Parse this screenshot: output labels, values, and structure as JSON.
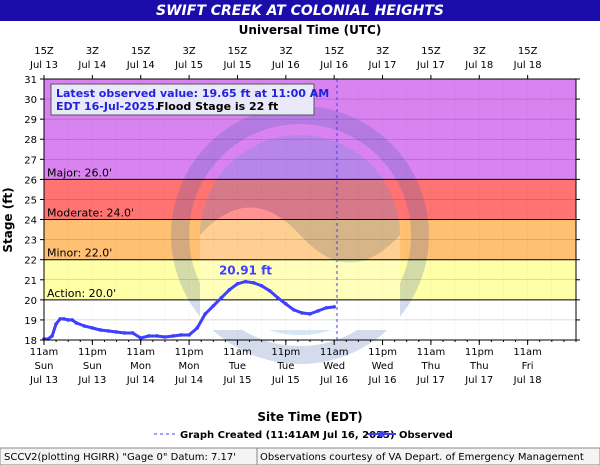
{
  "header": {
    "title": "SWIFT CREEK AT COLONIAL HEIGHTS",
    "top_axis_title": "Universal Time (UTC)"
  },
  "info_box": {
    "line1": "Latest observed value: 19.65 ft at 11:00 AM",
    "line2_a": "EDT 16-Jul-2025.",
    "line2_b": "Flood Stage is 22 ft"
  },
  "peak_label": "20.91 ft",
  "flood_categories": [
    {
      "name": "major",
      "label": "Major: 26.0'",
      "from": 26,
      "to": 31,
      "color": "#d883f0"
    },
    {
      "name": "moderate",
      "label": "Moderate: 24.0'",
      "from": 24,
      "to": 26,
      "color": "#ff7373"
    },
    {
      "name": "minor",
      "label": "Minor: 22.0'",
      "from": 22,
      "to": 24,
      "color": "#ffc073"
    },
    {
      "name": "action",
      "label": "Action: 20.0'",
      "from": 20,
      "to": 22,
      "color": "#ffffa8"
    }
  ],
  "footer": {
    "legend_created": "Graph Created (11:41AM Jul 16, 2025)",
    "legend_observed": "Observed",
    "site_info": "SCCV2(plotting HGIRR) \"Gage 0\" Datum: 7.17'",
    "credit": "Observations courtesy of VA Depart. of Emergency Management"
  },
  "colors": {
    "title_bar": "#1a0dab",
    "plot_frame": "#000000",
    "observed": "#3f3fff",
    "grid": "#999999"
  },
  "chart_data": {
    "type": "line",
    "ylabel": "Stage (ft)",
    "xlabel": "Site Time (EDT)",
    "ylim": [
      18,
      31
    ],
    "y_ticks": [
      18,
      19,
      20,
      21,
      22,
      23,
      24,
      25,
      26,
      27,
      28,
      29,
      30,
      31
    ],
    "x_range_hours": [
      0,
      132
    ],
    "bottom_ticks": [
      {
        "line1": "11am",
        "line2": "Sun",
        "line3": "Jul 13"
      },
      {
        "line1": "11pm",
        "line2": "Sun",
        "line3": "Jul 13"
      },
      {
        "line1": "11am",
        "line2": "Mon",
        "line3": "Jul 14"
      },
      {
        "line1": "11pm",
        "line2": "Mon",
        "line3": "Jul 14"
      },
      {
        "line1": "11am",
        "line2": "Tue",
        "line3": "Jul 15"
      },
      {
        "line1": "11pm",
        "line2": "Tue",
        "line3": "Jul 15"
      },
      {
        "line1": "11am",
        "line2": "Wed",
        "line3": "Jul 16"
      },
      {
        "line1": "11pm",
        "line2": "Wed",
        "line3": "Jul 16"
      },
      {
        "line1": "11am",
        "line2": "Thu",
        "line3": "Jul 17"
      },
      {
        "line1": "11pm",
        "line2": "Thu",
        "line3": "Jul 17"
      },
      {
        "line1": "11am",
        "line2": "Fri",
        "line3": "Jul 18"
      }
    ],
    "top_ticks": [
      {
        "line1": "15Z",
        "line2": "Jul 13"
      },
      {
        "line1": "3Z",
        "line2": "Jul 14"
      },
      {
        "line1": "15Z",
        "line2": "Jul 14"
      },
      {
        "line1": "3Z",
        "line2": "Jul 15"
      },
      {
        "line1": "15Z",
        "line2": "Jul 15"
      },
      {
        "line1": "3Z",
        "line2": "Jul 16"
      },
      {
        "line1": "15Z",
        "line2": "Jul 16"
      },
      {
        "line1": "3Z",
        "line2": "Jul 17"
      },
      {
        "line1": "15Z",
        "line2": "Jul 17"
      },
      {
        "line1": "3Z",
        "line2": "Jul 18"
      },
      {
        "line1": "15Z",
        "line2": "Jul 18"
      }
    ],
    "created_hour": 72.7,
    "series": [
      {
        "name": "Observed",
        "points": [
          [
            0,
            18.05
          ],
          [
            1,
            18.05
          ],
          [
            2,
            18.2
          ],
          [
            3,
            18.8
          ],
          [
            4,
            19.05
          ],
          [
            5,
            19.05
          ],
          [
            6,
            19.0
          ],
          [
            7,
            19.0
          ],
          [
            8,
            18.85
          ],
          [
            10,
            18.7
          ],
          [
            12,
            18.6
          ],
          [
            14,
            18.5
          ],
          [
            16,
            18.45
          ],
          [
            18,
            18.4
          ],
          [
            20,
            18.35
          ],
          [
            22,
            18.35
          ],
          [
            24,
            18.1
          ],
          [
            26,
            18.2
          ],
          [
            28,
            18.2
          ],
          [
            30,
            18.15
          ],
          [
            32,
            18.2
          ],
          [
            34,
            18.25
          ],
          [
            36,
            18.25
          ],
          [
            38,
            18.6
          ],
          [
            40,
            19.3
          ],
          [
            42,
            19.7
          ],
          [
            44,
            20.1
          ],
          [
            46,
            20.5
          ],
          [
            48,
            20.8
          ],
          [
            50,
            20.91
          ],
          [
            52,
            20.85
          ],
          [
            54,
            20.7
          ],
          [
            56,
            20.45
          ],
          [
            58,
            20.1
          ],
          [
            60,
            19.8
          ],
          [
            62,
            19.5
          ],
          [
            64,
            19.35
          ],
          [
            66,
            19.3
          ],
          [
            68,
            19.45
          ],
          [
            70,
            19.6
          ],
          [
            72,
            19.65
          ]
        ]
      }
    ]
  }
}
